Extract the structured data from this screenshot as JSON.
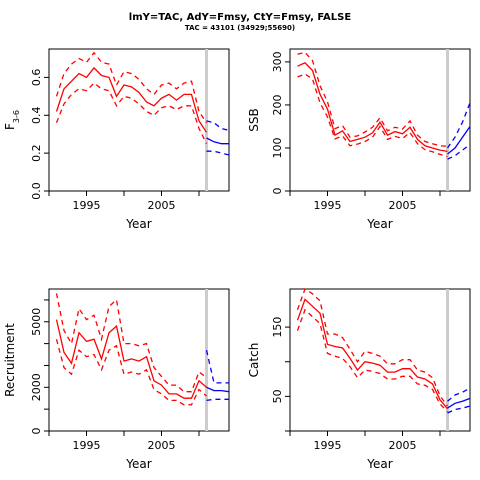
{
  "figure": {
    "title": "lmY=TAC, AdY=Fmsy, CtY=Fmsy, FALSE",
    "subtitle": "TAC = 43101 (34929;55690)"
  },
  "colors": {
    "historic": "#ff0000",
    "projection": "#0000ff",
    "marker_line": "#cccccc"
  },
  "chart_data": [
    {
      "id": "fbar",
      "type": "line",
      "ylabel": "F3-6",
      "xlabel": "Year",
      "xlim": [
        1990,
        2014
      ],
      "ylim": [
        0,
        0.75
      ],
      "xticks": [
        1995,
        2005
      ],
      "yticks": [
        0.0,
        0.2,
        0.4,
        0.6
      ],
      "ytick_labels": [
        "0.0",
        "0.2",
        "0.4",
        "0.6"
      ],
      "vline": 2011,
      "x": [
        1991,
        1992,
        1993,
        1994,
        1995,
        1996,
        1997,
        1998,
        1999,
        2000,
        2001,
        2002,
        2003,
        2004,
        2005,
        2006,
        2007,
        2008,
        2009,
        2010,
        2011
      ],
      "series": [
        {
          "role": "historic",
          "line": "solid",
          "values": [
            0.42,
            0.54,
            0.58,
            0.62,
            0.6,
            0.65,
            0.61,
            0.6,
            0.5,
            0.56,
            0.55,
            0.52,
            0.47,
            0.45,
            0.49,
            0.51,
            0.48,
            0.51,
            0.51,
            0.37,
            0.31
          ]
        },
        {
          "role": "historic",
          "line": "dashed",
          "values": [
            0.5,
            0.62,
            0.67,
            0.7,
            0.68,
            0.73,
            0.68,
            0.67,
            0.56,
            0.63,
            0.62,
            0.59,
            0.54,
            0.51,
            0.56,
            0.57,
            0.54,
            0.57,
            0.58,
            0.42,
            0.36
          ]
        },
        {
          "role": "historic",
          "line": "dashed",
          "values": [
            0.36,
            0.46,
            0.51,
            0.54,
            0.53,
            0.57,
            0.54,
            0.53,
            0.45,
            0.5,
            0.49,
            0.46,
            0.42,
            0.4,
            0.44,
            0.45,
            0.43,
            0.45,
            0.45,
            0.33,
            0.25
          ]
        },
        {
          "role": "projection",
          "line": "solid",
          "x": [
            2011,
            2012,
            2013,
            2014
          ],
          "values": [
            0.28,
            0.26,
            0.25,
            0.25
          ]
        },
        {
          "role": "projection",
          "line": "dashed",
          "x": [
            2011,
            2012,
            2013,
            2014
          ],
          "values": [
            0.37,
            0.36,
            0.33,
            0.32
          ]
        },
        {
          "role": "projection",
          "line": "dashed",
          "x": [
            2011,
            2012,
            2013,
            2014
          ],
          "values": [
            0.21,
            0.21,
            0.2,
            0.19
          ]
        }
      ]
    },
    {
      "id": "ssb",
      "type": "line",
      "ylabel": "SSB",
      "xlabel": "Year",
      "xlim": [
        1990,
        2014
      ],
      "ylim": [
        0,
        330
      ],
      "xticks": [
        1995,
        2005
      ],
      "yticks": [
        0,
        100,
        200,
        300
      ],
      "ytick_labels": [
        "0",
        "100",
        "200",
        "300"
      ],
      "vline": 2011,
      "x": [
        1991,
        1992,
        1993,
        1994,
        1995,
        1996,
        1997,
        1998,
        1999,
        2000,
        2001,
        2002,
        2003,
        2004,
        2005,
        2006,
        2007,
        2008,
        2009,
        2010,
        2011
      ],
      "series": [
        {
          "role": "historic",
          "line": "solid",
          "values": [
            290,
            298,
            280,
            225,
            190,
            130,
            140,
            115,
            120,
            125,
            135,
            160,
            130,
            138,
            133,
            148,
            120,
            105,
            100,
            95,
            92
          ]
        },
        {
          "role": "historic",
          "line": "dashed",
          "values": [
            318,
            322,
            303,
            245,
            207,
            145,
            152,
            125,
            128,
            137,
            148,
            170,
            140,
            148,
            144,
            163,
            130,
            115,
            110,
            105,
            104
          ]
        },
        {
          "role": "historic",
          "line": "dashed",
          "values": [
            265,
            272,
            260,
            205,
            172,
            121,
            128,
            105,
            109,
            115,
            125,
            150,
            120,
            127,
            122,
            136,
            110,
            96,
            91,
            85,
            80
          ]
        },
        {
          "role": "projection",
          "line": "solid",
          "x": [
            2011,
            2012,
            2013,
            2014
          ],
          "values": [
            86,
            100,
            125,
            150
          ]
        },
        {
          "role": "projection",
          "line": "dashed",
          "x": [
            2011,
            2012,
            2013,
            2014
          ],
          "values": [
            100,
            125,
            160,
            205
          ]
        },
        {
          "role": "projection",
          "line": "dashed",
          "x": [
            2011,
            2012,
            2013,
            2014
          ],
          "values": [
            74,
            82,
            95,
            108
          ]
        }
      ]
    },
    {
      "id": "recruitment",
      "type": "line",
      "ylabel": "Recruitment",
      "xlabel": "Year",
      "xlim": [
        1990,
        2014
      ],
      "ylim": [
        0,
        6500
      ],
      "xticks": [
        1995,
        2005
      ],
      "yticks": [
        0,
        2000,
        5000
      ],
      "ytick_labels": [
        "0",
        "2000",
        "5000"
      ],
      "minor_yticks": [
        1000,
        3000,
        4000,
        6000
      ],
      "vline": 2011,
      "x": [
        1991,
        1992,
        1993,
        1994,
        1995,
        1996,
        1997,
        1998,
        1999,
        2000,
        2001,
        2002,
        2003,
        2004,
        2005,
        2006,
        2007,
        2008,
        2009,
        2010,
        2011
      ],
      "series": [
        {
          "role": "historic",
          "line": "solid",
          "values": [
            5100,
            3600,
            3100,
            4500,
            4100,
            4200,
            3300,
            4500,
            4800,
            3200,
            3300,
            3200,
            3400,
            2300,
            2100,
            1700,
            1700,
            1500,
            1500,
            2300,
            2000
          ]
        },
        {
          "role": "historic",
          "line": "dashed",
          "values": [
            6300,
            4600,
            4000,
            5600,
            5100,
            5300,
            4200,
            5700,
            6000,
            4000,
            4000,
            3900,
            4000,
            2900,
            2500,
            2100,
            2100,
            1800,
            1800,
            2700,
            2450
          ]
        },
        {
          "role": "historic",
          "line": "dashed",
          "values": [
            4200,
            2900,
            2600,
            3700,
            3400,
            3500,
            2800,
            3700,
            3900,
            2600,
            2700,
            2600,
            2800,
            1900,
            1700,
            1400,
            1400,
            1200,
            1200,
            1900,
            1600
          ]
        },
        {
          "role": "projection",
          "line": "solid",
          "x": [
            2011,
            2012,
            2013,
            2014
          ],
          "values": [
            2000,
            1850,
            1850,
            1800
          ]
        },
        {
          "role": "projection",
          "line": "dashed",
          "x": [
            2011,
            2012,
            2013,
            2014
          ],
          "values": [
            3700,
            2200,
            2200,
            2200
          ]
        },
        {
          "role": "projection",
          "line": "dashed",
          "x": [
            2011,
            2012,
            2013,
            2014
          ],
          "values": [
            1400,
            1450,
            1450,
            1450
          ]
        }
      ]
    },
    {
      "id": "catch",
      "type": "line",
      "ylabel": "Catch",
      "xlabel": "Year",
      "xlim": [
        1990,
        2014
      ],
      "ylim": [
        0,
        205
      ],
      "xticks": [
        1995,
        2005
      ],
      "yticks": [
        50,
        150
      ],
      "ytick_labels": [
        "50",
        "150"
      ],
      "minor_yticks": [
        0,
        100
      ],
      "vline": 2011,
      "x": [
        1991,
        1992,
        1993,
        1994,
        1995,
        1996,
        1997,
        1998,
        1999,
        2000,
        2001,
        2002,
        2003,
        2004,
        2005,
        2006,
        2007,
        2008,
        2009,
        2010,
        2011
      ],
      "series": [
        {
          "role": "historic",
          "line": "solid",
          "values": [
            160,
            190,
            180,
            170,
            125,
            122,
            120,
            105,
            88,
            100,
            98,
            95,
            85,
            85,
            90,
            90,
            78,
            75,
            68,
            45,
            32
          ]
        },
        {
          "role": "historic",
          "line": "dashed",
          "values": [
            175,
            205,
            198,
            188,
            140,
            140,
            135,
            118,
            100,
            115,
            112,
            108,
            97,
            97,
            103,
            103,
            88,
            85,
            77,
            51,
            36
          ]
        },
        {
          "role": "historic",
          "line": "dashed",
          "values": [
            145,
            175,
            165,
            155,
            112,
            108,
            105,
            93,
            77,
            88,
            86,
            83,
            75,
            75,
            79,
            79,
            68,
            66,
            60,
            39,
            28
          ]
        },
        {
          "role": "projection",
          "line": "solid",
          "x": [
            2011,
            2012,
            2013,
            2014
          ],
          "values": [
            33,
            40,
            43,
            47
          ]
        },
        {
          "role": "projection",
          "line": "dashed",
          "x": [
            2011,
            2012,
            2013,
            2014
          ],
          "values": [
            43,
            52,
            56,
            62
          ]
        },
        {
          "role": "projection",
          "line": "dashed",
          "x": [
            2011,
            2012,
            2013,
            2014
          ],
          "values": [
            26,
            31,
            33,
            36
          ]
        }
      ]
    }
  ]
}
